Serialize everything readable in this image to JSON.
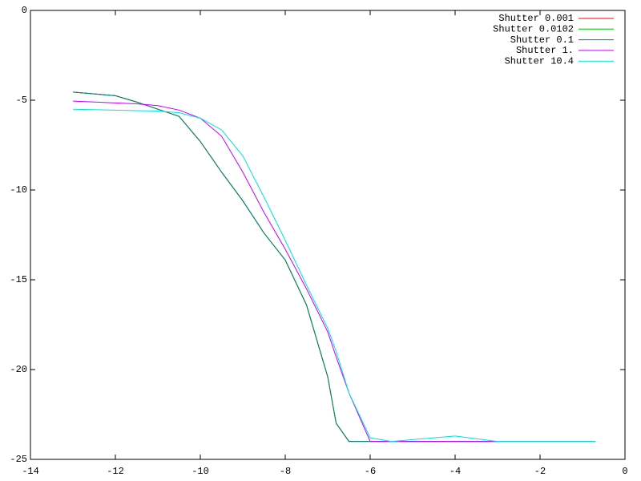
{
  "chart_data": {
    "type": "line",
    "x": [
      -13,
      -12,
      -11.5,
      -11,
      -10.5,
      -10,
      -9.5,
      -9,
      -8.5,
      -8,
      -7.5,
      -7,
      -6.8,
      -6.5,
      -6,
      -5.5,
      -5,
      -4,
      -3,
      -2,
      -0.7
    ],
    "series": [
      {
        "name": "Shutter 0.001",
        "color": "#ff0000",
        "values": [
          -4.55,
          -4.75,
          -5.1,
          -5.5,
          -5.9,
          -7.3,
          -9.0,
          -10.6,
          -12.4,
          -13.9,
          -16.4,
          -20.4,
          -23,
          -24,
          -24,
          -24,
          -24,
          -24,
          -24,
          null,
          null
        ]
      },
      {
        "name": "Shutter 0.0102",
        "color": "#00c000",
        "values": [
          -4.55,
          -4.75,
          -5.1,
          -5.5,
          -5.9,
          -7.3,
          -9.0,
          -10.6,
          -12.4,
          -13.9,
          -16.4,
          -20.4,
          -23,
          -24,
          -24,
          -24,
          -24,
          -24,
          -24,
          -24,
          -24
        ]
      },
      {
        "name": "Shutter 0.1",
        "color": "#008080",
        "values": [
          -4.55,
          -4.75,
          -5.1,
          -5.5,
          -5.9,
          -7.3,
          -9.0,
          -10.6,
          -12.4,
          -13.9,
          -16.4,
          -20.4,
          -23,
          -24,
          -24,
          -24,
          -24,
          -24,
          -24,
          null,
          null
        ]
      },
      {
        "name": "Shutter 1.",
        "color": "#c000ff",
        "values": [
          -5.05,
          -5.15,
          -5.2,
          -5.3,
          -5.55,
          -6.0,
          -7.0,
          -9.0,
          -11.25,
          -13.3,
          -15.5,
          -17.9,
          -19.3,
          -21.3,
          -24,
          -24,
          -24,
          -24,
          -24,
          -24,
          -24
        ]
      },
      {
        "name": "Shutter 10.4",
        "color": "#00e0e0",
        "values": [
          -5.5,
          -5.55,
          -5.58,
          -5.6,
          -5.7,
          -6.0,
          -6.65,
          -8.1,
          -10.4,
          -12.8,
          -15.3,
          -17.7,
          -19,
          -21.3,
          -23.8,
          -24,
          -23.9,
          -23.7,
          -24,
          -24,
          -24
        ]
      }
    ],
    "xlim": [
      -14,
      0
    ],
    "ylim": [
      -25,
      0
    ],
    "xticks": [
      -14,
      -12,
      -10,
      -8,
      -6,
      -4,
      -2,
      0
    ],
    "yticks": [
      -25,
      -20,
      -15,
      -10,
      -5,
      0
    ],
    "legend": "top-right"
  }
}
